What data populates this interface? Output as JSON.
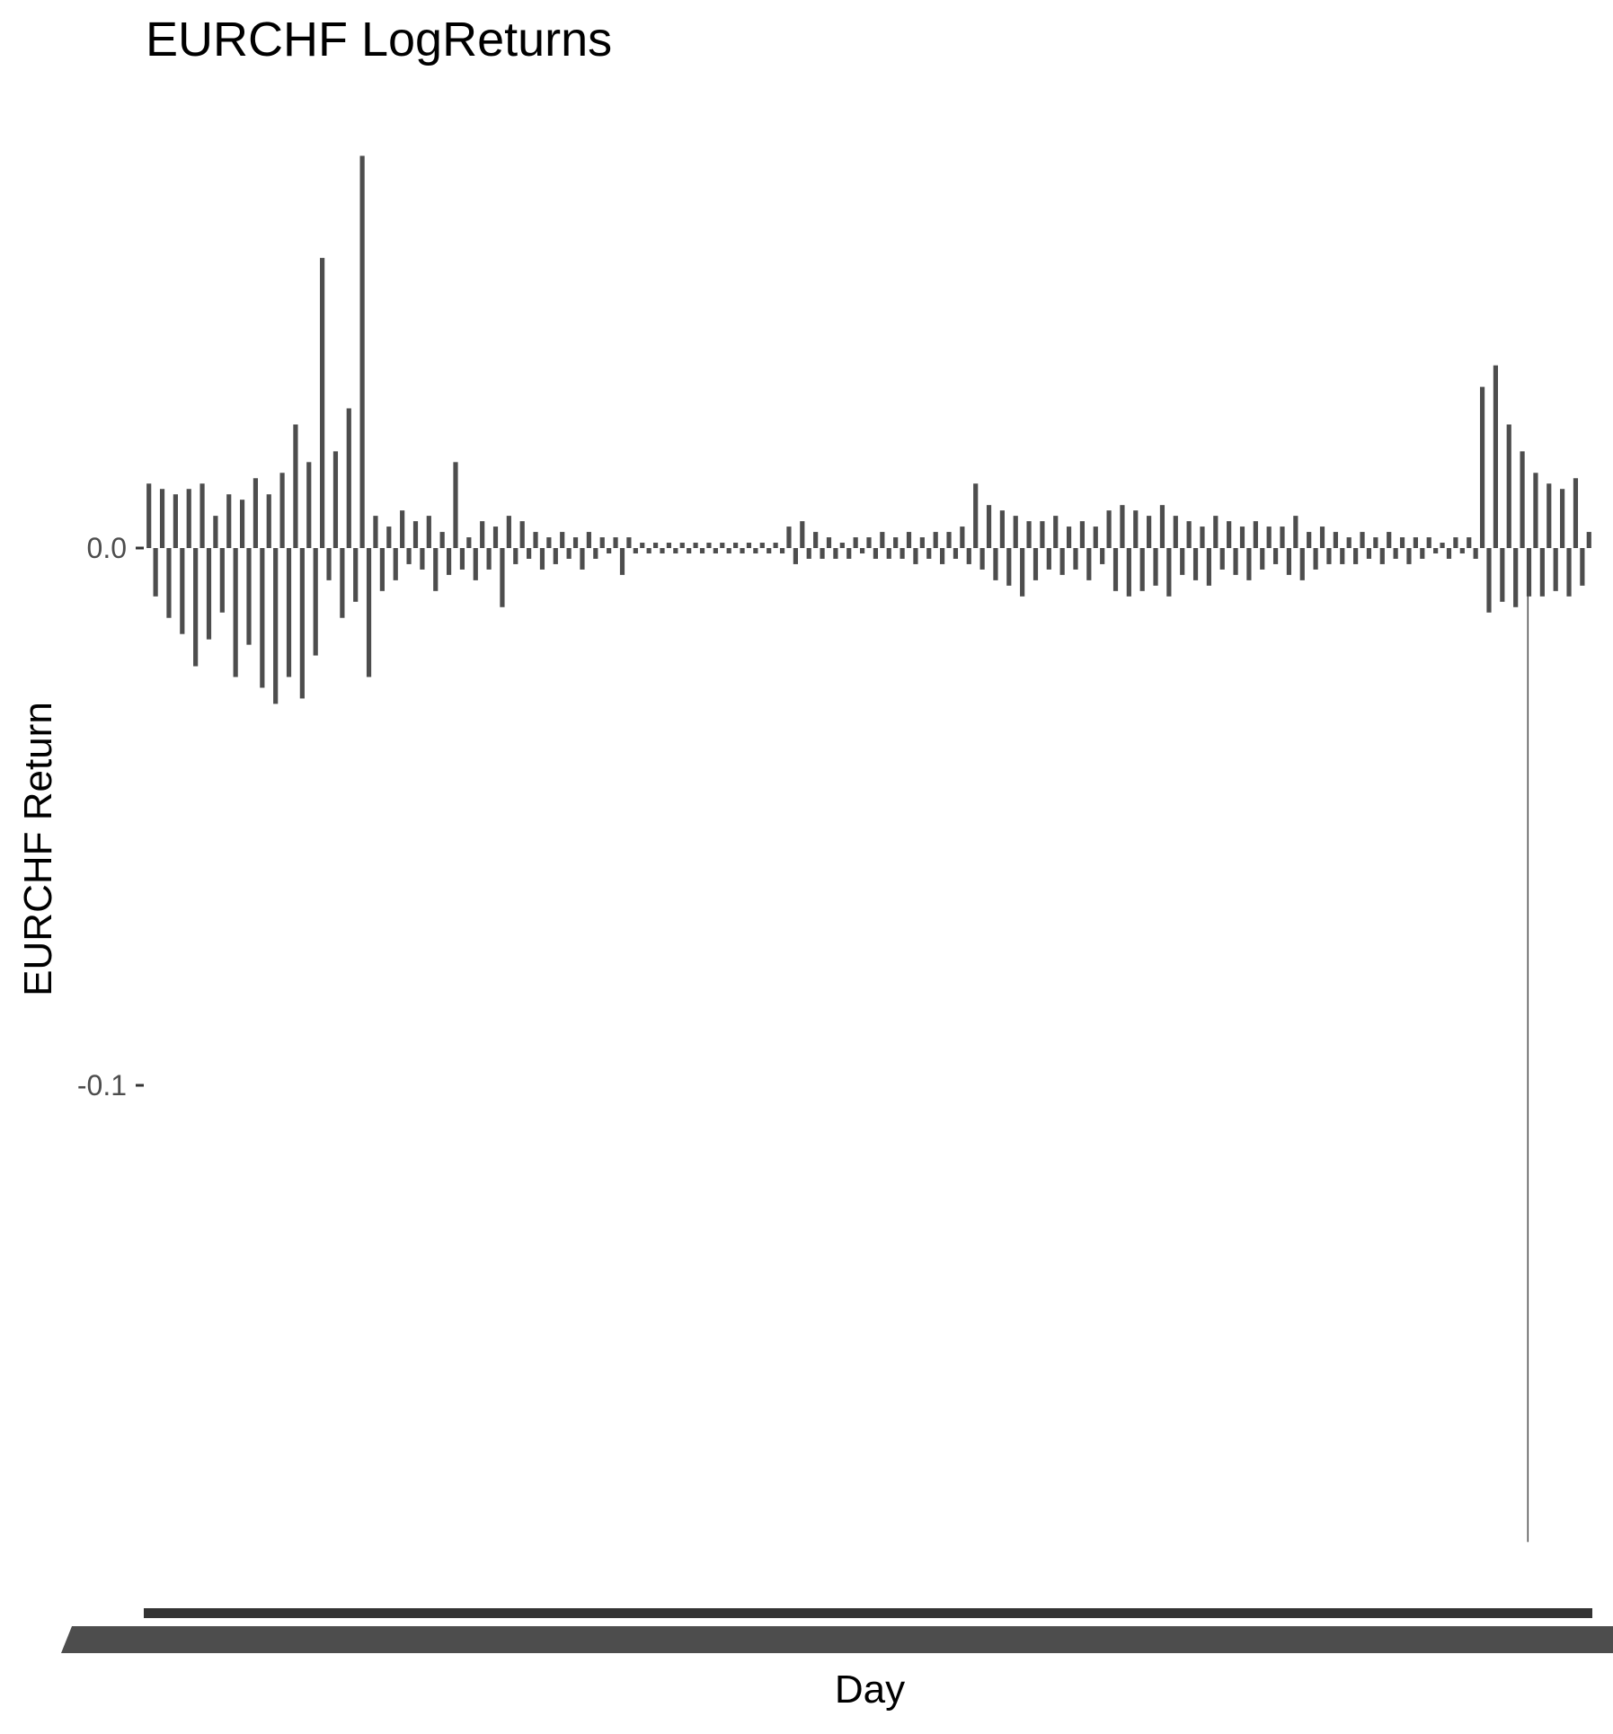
{
  "chart_data": {
    "type": "bar",
    "title": "EURCHF LogReturns",
    "xlabel": "Day",
    "ylabel": "EURCHF Return",
    "ylim": [
      -0.19,
      0.075
    ],
    "yticks": [
      {
        "value": 0.0,
        "label": "0.0"
      },
      {
        "value": -0.1,
        "label": "-0.1"
      }
    ],
    "grid": false,
    "legend": "none",
    "bar_color": "#4d4d4d",
    "series": [
      {
        "values": [
          0.012,
          -0.009,
          0.011,
          -0.013,
          0.01,
          -0.016,
          0.011,
          -0.022,
          0.012,
          -0.017,
          0.006,
          -0.012,
          0.01,
          -0.024,
          0.009,
          -0.018,
          0.013,
          -0.026,
          0.01,
          -0.029,
          0.014,
          -0.024,
          0.023,
          -0.028,
          0.016,
          -0.02,
          0.054,
          -0.006,
          0.018,
          -0.013,
          0.026,
          -0.01,
          0.073,
          -0.024,
          0.006,
          -0.008,
          0.004,
          -0.006,
          0.007,
          -0.003,
          0.005,
          -0.004,
          0.006,
          -0.008,
          0.003,
          -0.005,
          0.016,
          -0.004,
          0.002,
          -0.006,
          0.005,
          -0.004,
          0.004,
          -0.011,
          0.006,
          -0.003,
          0.005,
          -0.002,
          0.003,
          -0.004,
          0.002,
          -0.003,
          0.003,
          -0.002,
          0.002,
          -0.004,
          0.003,
          -0.002,
          0.002,
          -0.001,
          0.002,
          -0.005,
          0.002,
          -0.001,
          0.001,
          -0.001,
          0.001,
          -0.001,
          0.001,
          -0.001,
          0.001,
          -0.001,
          0.001,
          -0.001,
          0.001,
          -0.001,
          0.001,
          -0.001,
          0.001,
          -0.001,
          0.001,
          -0.001,
          0.001,
          -0.001,
          0.001,
          -0.001,
          0.004,
          -0.003,
          0.005,
          -0.002,
          0.003,
          -0.002,
          0.002,
          -0.002,
          0.001,
          -0.002,
          0.002,
          -0.001,
          0.002,
          -0.002,
          0.003,
          -0.002,
          0.002,
          -0.002,
          0.003,
          -0.003,
          0.002,
          -0.002,
          0.003,
          -0.003,
          0.003,
          -0.002,
          0.004,
          -0.003,
          0.012,
          -0.004,
          0.008,
          -0.006,
          0.007,
          -0.007,
          0.006,
          -0.009,
          0.005,
          -0.006,
          0.005,
          -0.004,
          0.006,
          -0.005,
          0.004,
          -0.004,
          0.005,
          -0.006,
          0.004,
          -0.003,
          0.007,
          -0.008,
          0.008,
          -0.009,
          0.007,
          -0.008,
          0.006,
          -0.007,
          0.008,
          -0.009,
          0.006,
          -0.005,
          0.005,
          -0.006,
          0.004,
          -0.007,
          0.006,
          -0.004,
          0.005,
          -0.005,
          0.004,
          -0.006,
          0.005,
          -0.004,
          0.004,
          -0.003,
          0.004,
          -0.005,
          0.006,
          -0.006,
          0.003,
          -0.004,
          0.004,
          -0.003,
          0.003,
          -0.003,
          0.002,
          -0.003,
          0.003,
          -0.002,
          0.002,
          -0.003,
          0.003,
          -0.002,
          0.002,
          -0.003,
          0.002,
          -0.002,
          0.002,
          -0.001,
          0.001,
          -0.002,
          0.002,
          -0.001,
          0.002,
          -0.002,
          0.03,
          -0.012,
          0.034,
          -0.01,
          0.023,
          -0.011,
          0.018,
          -0.009,
          0.014,
          -0.009,
          0.012,
          -0.008,
          0.011,
          -0.009,
          0.013,
          -0.007,
          0.003
        ]
      }
    ],
    "spike_down": {
      "position": 0.955,
      "value": -0.185
    },
    "x_tick_labels": "illegible"
  }
}
